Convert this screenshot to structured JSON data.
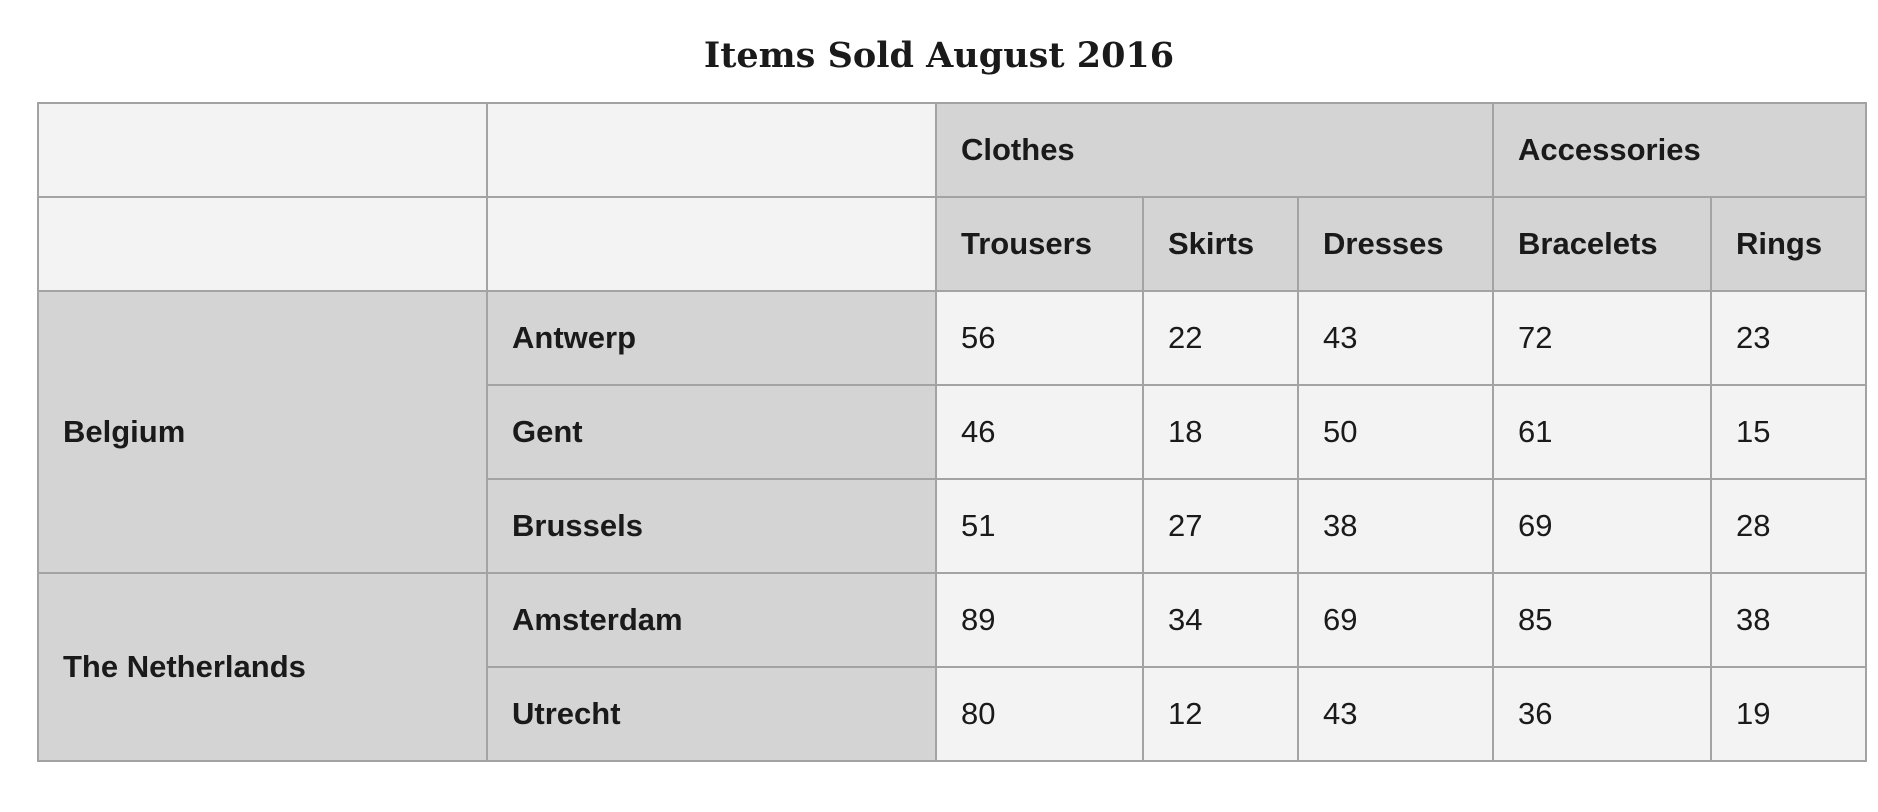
{
  "title": "Items Sold August 2016",
  "groups": {
    "clothes": "Clothes",
    "accessories": "Accessories"
  },
  "columns": [
    "Trousers",
    "Skirts",
    "Dresses",
    "Bracelets",
    "Rings"
  ],
  "countries": {
    "belgium": "Belgium",
    "netherlands": "The Netherlands"
  },
  "rows": [
    {
      "city": "Antwerp",
      "values": [
        "56",
        "22",
        "43",
        "72",
        "23"
      ]
    },
    {
      "city": "Gent",
      "values": [
        "46",
        "18",
        "50",
        "61",
        "15"
      ]
    },
    {
      "city": "Brussels",
      "values": [
        "51",
        "27",
        "38",
        "69",
        "28"
      ]
    },
    {
      "city": "Amsterdam",
      "values": [
        "89",
        "34",
        "69",
        "85",
        "38"
      ]
    },
    {
      "city": "Utrecht",
      "values": [
        "80",
        "12",
        "43",
        "36",
        "19"
      ]
    }
  ],
  "colors": {
    "header_bg": "#d4d4d4",
    "cell_bg": "#f3f3f3",
    "border": "#a3a3a3",
    "text": "#1a1a1a"
  }
}
